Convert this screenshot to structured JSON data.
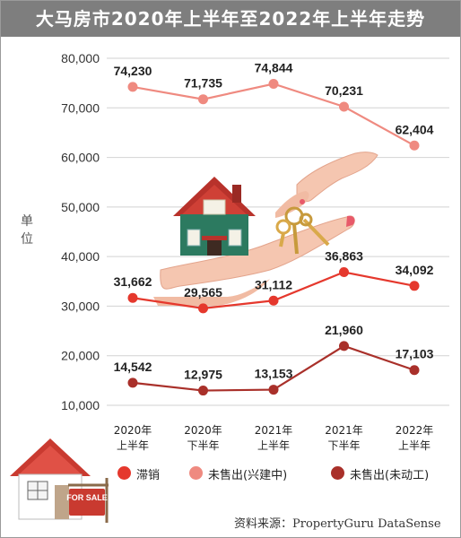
{
  "header": {
    "title": "大马房市2020年上半年至2022年上半年走势"
  },
  "unit_label": "单位",
  "source": "资料来源：PropertyGuru DataSense",
  "chart_data": {
    "type": "line",
    "categories": [
      [
        "2020年",
        "上半年"
      ],
      [
        "2020年",
        "下半年"
      ],
      [
        "2021年",
        "上半年"
      ],
      [
        "2021年",
        "下半年"
      ],
      [
        "2022年",
        "上半年"
      ]
    ],
    "ylabel": "单位",
    "ylim": [
      10000,
      80000
    ],
    "yticks": [
      10000,
      20000,
      30000,
      40000,
      50000,
      60000,
      70000,
      80000
    ],
    "ytick_labels": [
      "10,000",
      "20,000",
      "30,000",
      "40,000",
      "50,000",
      "60,000",
      "70,000",
      "80,000"
    ],
    "grid": true,
    "legend_position": "bottom",
    "series": [
      {
        "name": "未售出(兴建中)",
        "color": "#ef8a80",
        "values": [
          74230,
          71735,
          74844,
          70231,
          62404
        ],
        "labels": [
          "74,230",
          "71,735",
          "74,844",
          "70,231",
          "62,404"
        ]
      },
      {
        "name": "滞销",
        "color": "#e5382d",
        "values": [
          31662,
          29565,
          31112,
          36863,
          34092
        ],
        "labels": [
          "31,662",
          "29,565",
          "31,112",
          "36,863",
          "34,092"
        ]
      },
      {
        "name": "未售出(未动工)",
        "color": "#a9302a",
        "values": [
          14542,
          12975,
          13153,
          21960,
          17103
        ],
        "labels": [
          "14,542",
          "12,975",
          "13,153",
          "21,960",
          "17,103"
        ]
      }
    ]
  },
  "legend": [
    {
      "label": "滞销",
      "color": "#e5382d"
    },
    {
      "label": "未售出(兴建中)",
      "color": "#ef8a80"
    },
    {
      "label": "未售出(未动工)",
      "color": "#a9302a"
    }
  ],
  "illustrations": {
    "center": "house-with-keys-icon",
    "bottom_left": "house-for-sale-icon",
    "sign_text": "FOR SALE"
  }
}
